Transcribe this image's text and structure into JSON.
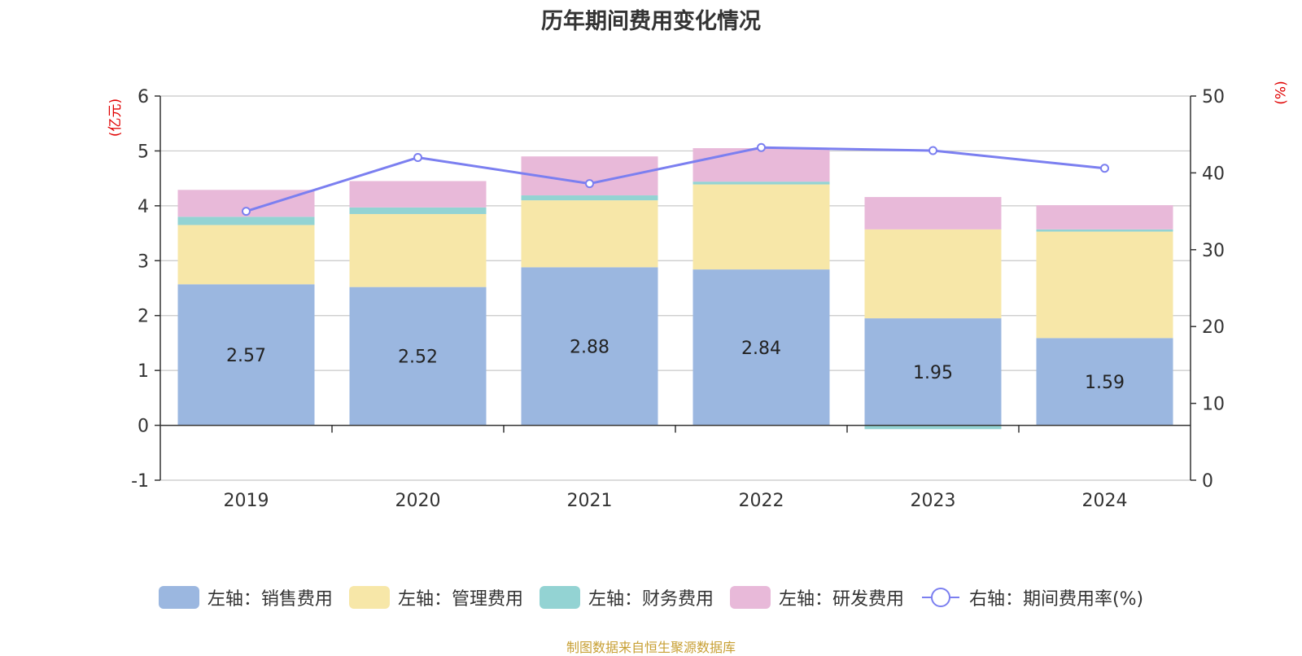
{
  "chart_data": {
    "type": "bar",
    "title": "历年期间费用变化情况",
    "categories": [
      "2019",
      "2020",
      "2021",
      "2022",
      "2023",
      "2024"
    ],
    "stacked": true,
    "y_left": {
      "unit_label": "(亿元)",
      "range": [
        -1,
        6
      ],
      "ticks": [
        -1,
        0,
        1,
        2,
        3,
        4,
        5,
        6
      ]
    },
    "y_right": {
      "unit_label": "(%)",
      "range": [
        0,
        50
      ],
      "ticks": [
        0,
        10,
        20,
        30,
        40,
        50
      ]
    },
    "series": [
      {
        "name": "左轴：销售费用",
        "axis": "left",
        "kind": "bar",
        "color": "#9bb7e0",
        "values": [
          2.57,
          2.52,
          2.88,
          2.84,
          1.95,
          1.59
        ],
        "data_labels": [
          "2.57",
          "2.52",
          "2.88",
          "2.84",
          "1.95",
          "1.59"
        ]
      },
      {
        "name": "左轴：管理费用",
        "axis": "left",
        "kind": "bar",
        "color": "#f7e7a8",
        "values": [
          1.08,
          1.33,
          1.22,
          1.55,
          1.62,
          1.94
        ]
      },
      {
        "name": "左轴：财务费用",
        "axis": "left",
        "kind": "bar",
        "color": "#93d3d3",
        "values": [
          0.15,
          0.12,
          0.09,
          0.05,
          -0.07,
          0.04
        ]
      },
      {
        "name": "左轴：研发费用",
        "axis": "left",
        "kind": "bar",
        "color": "#e8b9d9",
        "values": [
          0.49,
          0.48,
          0.71,
          0.61,
          0.59,
          0.44
        ]
      },
      {
        "name": "右轴：期间费用率(%)",
        "axis": "right",
        "kind": "line",
        "color": "#7b7ff0",
        "values": [
          35.0,
          42.0,
          38.6,
          43.3,
          42.9,
          40.6
        ]
      }
    ],
    "legend_position": "bottom"
  },
  "source_note": "制图数据来自恒生聚源数据库"
}
